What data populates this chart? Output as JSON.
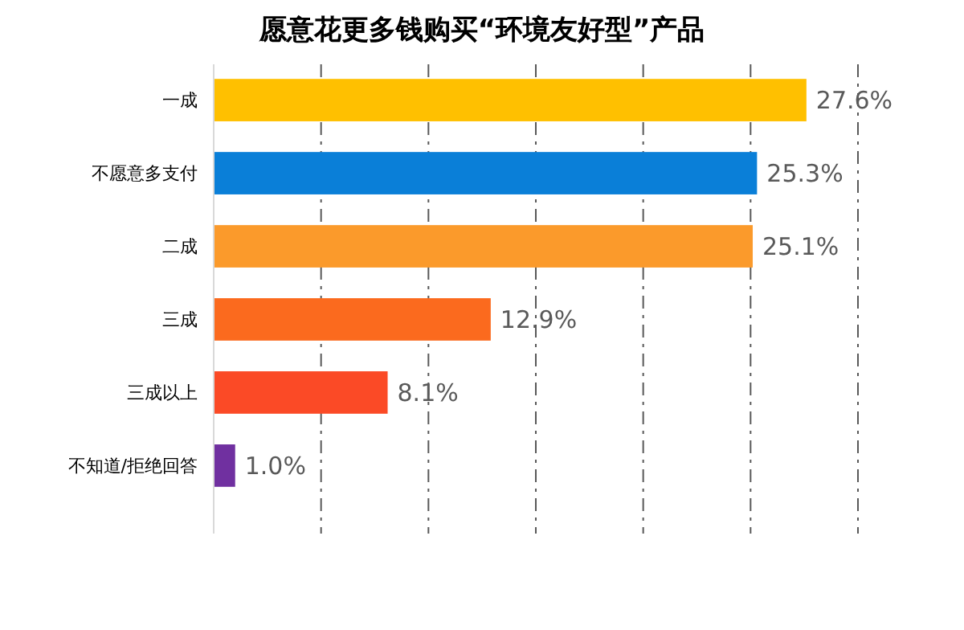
{
  "chart_data": {
    "type": "bar",
    "orientation": "horizontal",
    "title": "愿意花更多钱购买“环境友好型”产品",
    "categories": [
      "一成",
      "不愿意多支付",
      "二成",
      "三成",
      "三成以上",
      "不知道/拒绝回答"
    ],
    "values": [
      27.6,
      25.3,
      25.1,
      12.9,
      8.1,
      1.0
    ],
    "colors": [
      "#ffc000",
      "#0a7fd8",
      "#fb9a2b",
      "#fb6a1e",
      "#fb4a26",
      "#7030a0"
    ],
    "value_labels": [
      "27.6%",
      "25.3%",
      "25.1%",
      "12.9%",
      "8.1%",
      "1.0%"
    ],
    "xlim": [
      0,
      30
    ],
    "xticks": [
      {
        "value": 0,
        "label": null
      },
      {
        "value": 5,
        "label": null
      },
      {
        "value": 10,
        "label": null
      },
      {
        "value": 15,
        "label": null
      },
      {
        "value": 20,
        "label": null
      },
      {
        "value": 25,
        "label": null
      },
      {
        "value": 30,
        "label": null
      }
    ],
    "grid": "x",
    "tick_labels": "y"
  }
}
